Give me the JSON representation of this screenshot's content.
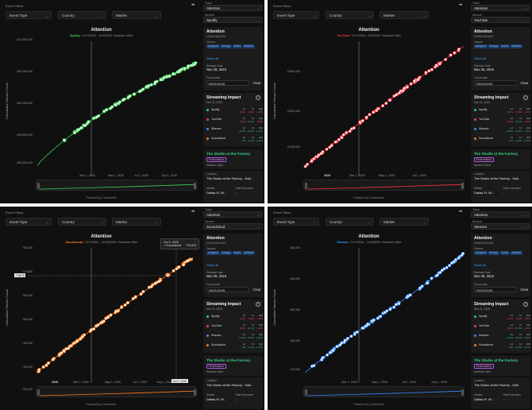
{
  "filters": {
    "label": "Event Filters",
    "event_type": "Event Type",
    "country": "Country",
    "market": "Market",
    "menu": "•••"
  },
  "sidebar": {
    "track_label": "Track",
    "track_value": "Attention",
    "service_label": "Service",
    "genres_label": "Genres",
    "show_all": "Show all",
    "release_date_label": "Release Date",
    "release_date": "Nov 25, 2016",
    "focus_date_label": "Focus date",
    "focus_date": "03/21/2025",
    "clear": "Clear",
    "impact_title": "Streaming Impact",
    "impact_date": "Mar 21, 2025",
    "location_label": "Location",
    "location": "The Studio at the Factory - Dall...",
    "market_label": "Market",
    "market_value": "Dallas-Ft. W...",
    "total_expenses_label": "Total Expenses",
    "total_expenses": "—",
    "event_title": "The Studio at the Factory",
    "event_badge": "Performance",
    "event_venue": "Northern Wild",
    "help_icon": "?"
  },
  "track": {
    "title": "Attention",
    "isrc": "USUG11601007",
    "genres": [
      "unsigned",
      "therapy",
      "backs",
      "#biblical"
    ]
  },
  "chart": {
    "ylabel": "Cumulative Stream Count",
    "powered_by": "Powered by Chartmetric"
  },
  "panels": [
    {
      "service": "Spotify",
      "color": "#39d353",
      "subtitle_rest": " / 11/7/2024 - 11/4/2025 / Northern Wild",
      "impact": [
        {
          "name": "Spotify",
          "color": "#1ed760",
          "v": [
            "-0.4%",
            "-0.6%",
            "-1.5%"
          ],
          "cls": [
            "down",
            "down",
            "down"
          ]
        },
        {
          "name": "YouTube",
          "color": "#ff3b3b",
          "v": [
            "-0.6%",
            "+0.1%",
            "-0.4%"
          ],
          "cls": [
            "down",
            "up",
            "down"
          ]
        },
        {
          "name": "Shazam",
          "color": "#3a8dff",
          "v": [
            "+0.9%",
            "+0.9%",
            "+1.5%"
          ],
          "cls": [
            "up",
            "up",
            "up"
          ]
        },
        {
          "name": "Soundcloud",
          "color": "#ff7a1a",
          "v": [
            "0%",
            "+1.3%",
            "+1.2%"
          ],
          "cls": [
            "up",
            "up",
            "up"
          ]
        }
      ],
      "chart_data": {
        "type": "line",
        "title": "Attention",
        "ylabel": "Cumulative Stream Count",
        "yticks": [
          "310,000,000",
          "305,000,000",
          "300,000,000",
          "295,000,000",
          "290,000,000"
        ],
        "xticks": [
          "Mar 1, 2025",
          "May 1, 2025",
          "Jul 1, 2025",
          "Sep 1, 2025"
        ],
        "ylim": [
          287000000,
          312000000
        ],
        "series": [
          {
            "name": "Spotify",
            "x_start": "2024-11-07",
            "x_end": "2025-11-04",
            "y_start": 288000000,
            "y_end": 307500000
          }
        ]
      }
    },
    {
      "service": "YouTube",
      "color": "#ff3040",
      "subtitle_rest": " / 11/7/2024 - 9/9/2025 / Northern Wild",
      "impact": [
        {
          "name": "Spotify",
          "color": "#1ed760",
          "v": [
            "-0.4%",
            "-0.6%",
            "-1.5%"
          ],
          "cls": [
            "down",
            "down",
            "down"
          ]
        },
        {
          "name": "YouTube",
          "color": "#ff3b3b",
          "v": [
            "-0.6%",
            "+0.1%",
            "-0.4%"
          ],
          "cls": [
            "down",
            "up",
            "down"
          ]
        },
        {
          "name": "Shazam",
          "color": "#3a8dff",
          "v": [
            "+0.9%",
            "+0.9%",
            "+1.5%"
          ],
          "cls": [
            "up",
            "up",
            "up"
          ]
        },
        {
          "name": "Soundcloud",
          "color": "#ff7a1a",
          "v": [
            "0%",
            "+1.3%",
            "+1.2%"
          ],
          "cls": [
            "up",
            "up",
            "up"
          ]
        }
      ],
      "chart_data": {
        "type": "line",
        "title": "Attention",
        "ylabel": "Cumulative Stream Count",
        "yticks": [
          "8,800,000",
          "8,600,000",
          "8,400,000"
        ],
        "xticks": [
          "2025",
          "Mar 1, 2025",
          "May 1, 2025",
          "Jul 1, 2025"
        ],
        "ylim": [
          8330000,
          8930000
        ],
        "series": [
          {
            "name": "YouTube",
            "x_start": "2024-11-07",
            "x_end": "2025-09-09",
            "y_start": 8350000,
            "y_end": 8900000
          }
        ]
      }
    },
    {
      "service": "Soundcloud",
      "color": "#ff7a1a",
      "subtitle_rest": " / 11/7/2024 - 11/26/2025 / Northern Wild",
      "tooltip_date": "Oct 2, 2025",
      "tooltip_value": "776,878",
      "y_marker": "776878",
      "x_marker": "Oct 2, 2025",
      "impact": [
        {
          "name": "Spotify",
          "color": "#1ed760",
          "v": [
            "-0.4%",
            "-0.6%",
            "-1.5%"
          ],
          "cls": [
            "down",
            "down",
            "down"
          ]
        },
        {
          "name": "YouTube",
          "color": "#ff3b3b",
          "v": [
            "-0.6%",
            "+0.1%",
            "-0.4%"
          ],
          "cls": [
            "down",
            "up",
            "down"
          ]
        },
        {
          "name": "Shazam",
          "color": "#3a8dff",
          "v": [
            "+0.9%",
            "+0.9%",
            "+1.5%"
          ],
          "cls": [
            "up",
            "up",
            "up"
          ]
        },
        {
          "name": "Soundcloud",
          "color": "#ff7a1a",
          "v": [
            "0%",
            "+1.3%",
            "+1.2%"
          ],
          "cls": [
            "up",
            "up",
            "up"
          ]
        }
      ],
      "chart_data": {
        "type": "line",
        "title": "Attention",
        "ylabel": "Cumulative Stream Count",
        "yticks": [
          "780,000",
          "770,000",
          "760,000",
          "750,000",
          "740,000",
          "730,000",
          "720,000"
        ],
        "xticks": [
          "2025",
          "Mar 1, 2025",
          "May 1, 2025",
          "Jul 1, 2025",
          "Sep 1, 2025"
        ],
        "ylim": [
          715000,
          785000
        ],
        "series": [
          {
            "name": "Soundcloud",
            "x_start": "2024-11-07",
            "x_end": "2025-11-26",
            "y_start": 718000,
            "y_end": 779000
          }
        ]
      }
    },
    {
      "service": "Shazam",
      "color": "#2f8cff",
      "subtitle_rest": " / 11/7/2024 - 11/6/2025 / Northern Wild",
      "impact": [
        {
          "name": "Spotify",
          "color": "#1ed760",
          "v": [
            "-0.4%",
            "-0.6%",
            "-1.5%"
          ],
          "cls": [
            "down",
            "down",
            "down"
          ]
        },
        {
          "name": "YouTube",
          "color": "#ff3b3b",
          "v": [
            "-0.6%",
            "+0.1%",
            "-0.4%"
          ],
          "cls": [
            "down",
            "up",
            "down"
          ]
        },
        {
          "name": "Shazam",
          "color": "#3a8dff",
          "v": [
            "+0.9%",
            "+0.9%",
            "+1.5%"
          ],
          "cls": [
            "up",
            "up",
            "up"
          ]
        },
        {
          "name": "Soundcloud",
          "color": "#ff7a1a",
          "v": [
            "0%",
            "+1.3%",
            "+1.2%"
          ],
          "cls": [
            "up",
            "up",
            "up"
          ]
        }
      ],
      "chart_data": {
        "type": "line",
        "title": "Attention",
        "ylabel": "Cumulative Stream Count",
        "yticks": [
          "186,000",
          "184,000",
          "182,000",
          "180,000",
          "178,000"
        ],
        "xticks": [
          "Mar 1, 2025",
          "May 1, 2025",
          "Jul 1, 2025",
          "Sep 1, 2025"
        ],
        "ylim": [
          177000,
          188000
        ],
        "series": [
          {
            "name": "Shazam",
            "x_start": "2024-11-07",
            "x_end": "2025-11-06",
            "y_start": 177400,
            "y_end": 187400
          }
        ]
      }
    }
  ],
  "impact_headers": [
    "1d",
    "7d",
    "30d"
  ]
}
